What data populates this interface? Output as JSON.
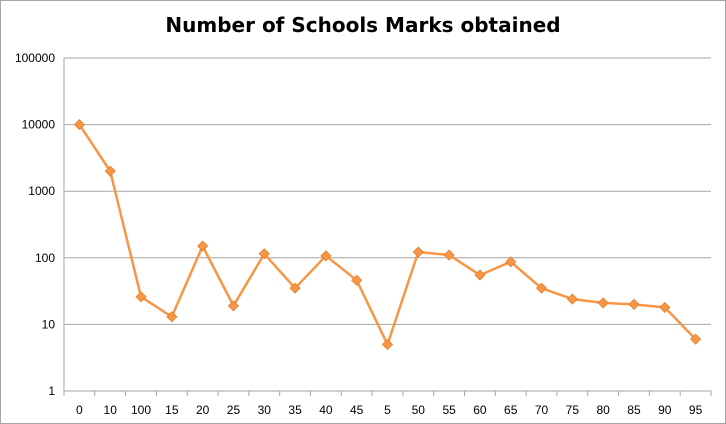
{
  "chart_data": {
    "type": "line",
    "title": "Number of Schools Marks obtained",
    "xlabel": "",
    "ylabel": "",
    "y_scale": "log",
    "ylim": [
      1,
      100000
    ],
    "y_ticks": [
      "1",
      "10",
      "100",
      "1000",
      "10000",
      "100000"
    ],
    "y_tick_values": [
      1,
      10,
      100,
      1000,
      10000,
      100000
    ],
    "categories": [
      "0",
      "10",
      "100",
      "15",
      "20",
      "25",
      "30",
      "35",
      "40",
      "45",
      "5",
      "50",
      "55",
      "60",
      "65",
      "70",
      "75",
      "80",
      "85",
      "90",
      "95"
    ],
    "series": [
      {
        "values": [
          10000,
          2000,
          26,
          13,
          150,
          19,
          115,
          35,
          107,
          46,
          5,
          122,
          110,
          55,
          87,
          35,
          24,
          21,
          20,
          18,
          6
        ]
      }
    ],
    "grid": true,
    "legend": "none",
    "colors": {
      "line": "#f79646",
      "marker": "#f79646",
      "grid": "#a6a6a6",
      "axis": "#a6a6a6"
    }
  }
}
